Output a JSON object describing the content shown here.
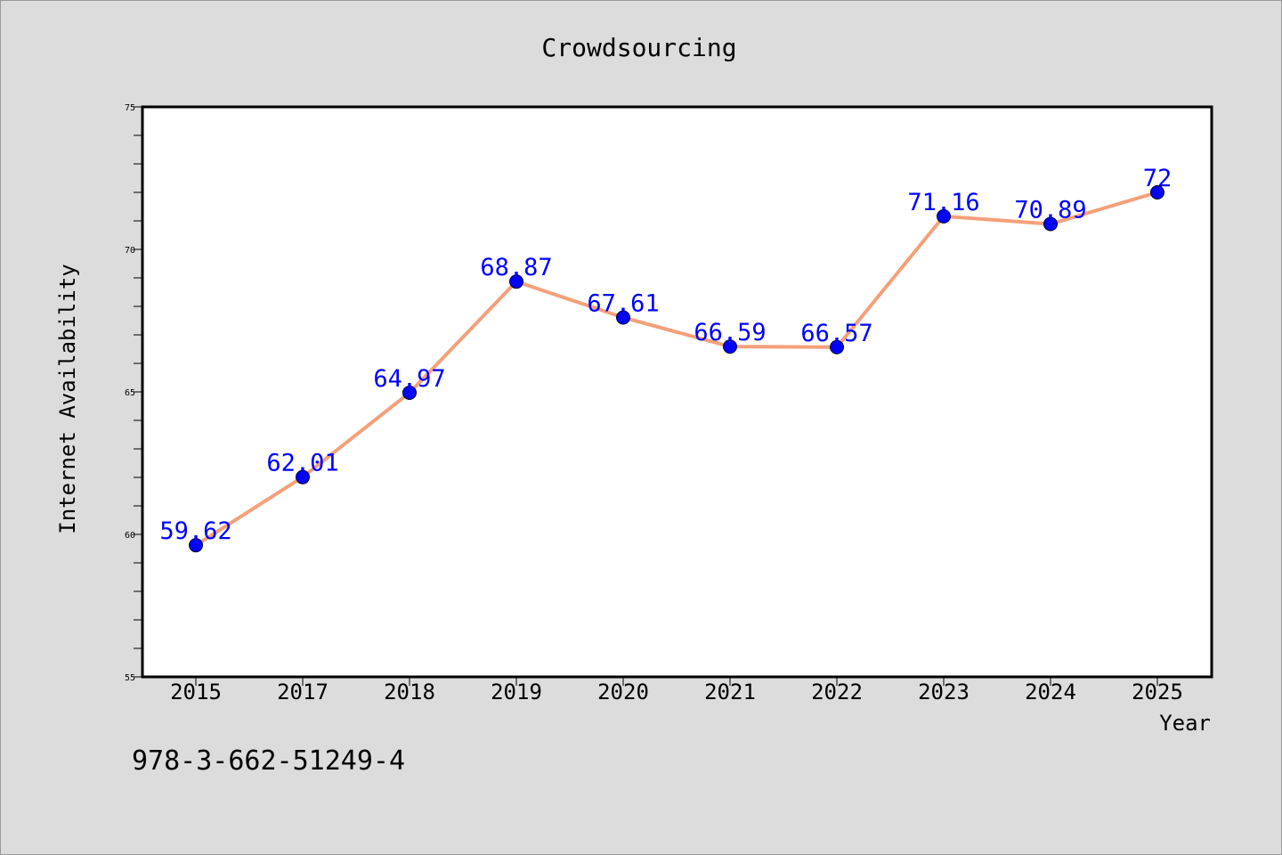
{
  "chart_data": {
    "type": "line",
    "title": "Crowdsourcing",
    "xlabel": "Year",
    "ylabel": "Internet Availability",
    "categories": [
      "2015",
      "2017",
      "2018",
      "2019",
      "2020",
      "2021",
      "2022",
      "2023",
      "2024",
      "2025"
    ],
    "series": [
      {
        "values": [
          59.62,
          62.01,
          64.97,
          68.87,
          67.61,
          66.59,
          66.57,
          71.16,
          70.89,
          72
        ],
        "labels": [
          "59.62",
          "62.01",
          "64.97",
          "68.87",
          "67.61",
          "66.59",
          "66.57",
          "71.16",
          "70.89",
          "72"
        ]
      }
    ],
    "ylim": [
      55,
      75
    ],
    "yticks": [
      "55",
      "60",
      "65",
      "70",
      "75"
    ],
    "grid": false,
    "colors": {
      "line": "#f4a07a",
      "marker": "#0000ff",
      "label": "#0000ff",
      "background": "#dcdcdc",
      "plot_background": "#ffffff"
    }
  },
  "annotation": {
    "isbn": "978-3-662-51249-4"
  }
}
